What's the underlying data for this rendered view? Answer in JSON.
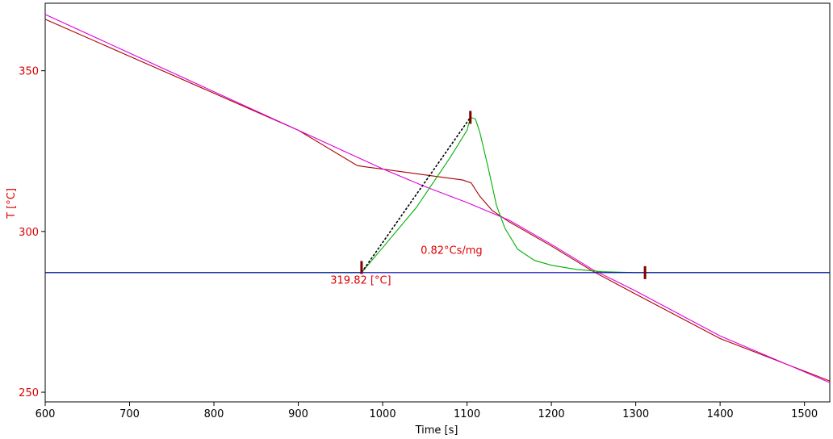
{
  "colors": {
    "axis_text": "#000000",
    "y_axis_text": "#d80000",
    "annotation": "#e00000",
    "marker": "#800000"
  },
  "chart_data": {
    "type": "line",
    "xlabel": "Time [s]",
    "ylabel": "T  [°C]",
    "xlim": [
      600,
      1530
    ],
    "ylim": [
      247,
      371
    ],
    "x_ticks": [
      600,
      700,
      800,
      900,
      1000,
      1100,
      1200,
      1300,
      1400,
      1500
    ],
    "y_ticks": [
      250,
      300,
      350
    ],
    "grid": false,
    "series": [
      {
        "color": "#aa0000",
        "points": [
          [
            600,
            366
          ],
          [
            700,
            354.5
          ],
          [
            800,
            343
          ],
          [
            900,
            331.5
          ],
          [
            970,
            320.5
          ],
          [
            980,
            320.1
          ],
          [
            1000,
            319.4
          ],
          [
            1050,
            317.6
          ],
          [
            1095,
            316
          ],
          [
            1105,
            315.1
          ],
          [
            1115,
            311
          ],
          [
            1130,
            306.5
          ],
          [
            1150,
            303
          ],
          [
            1200,
            295.5
          ],
          [
            1250,
            287.5
          ],
          [
            1300,
            280.5
          ],
          [
            1400,
            266.7
          ],
          [
            1530,
            253.5
          ]
        ]
      },
      {
        "color": "#dd00dd",
        "points": [
          [
            600,
            367.5
          ],
          [
            700,
            355.5
          ],
          [
            800,
            343.5
          ],
          [
            900,
            331.5
          ],
          [
            1000,
            319.5
          ],
          [
            1050,
            314
          ],
          [
            1100,
            309
          ],
          [
            1150,
            303.5
          ],
          [
            1200,
            296
          ],
          [
            1250,
            288
          ],
          [
            1300,
            281.5
          ],
          [
            1400,
            267.5
          ],
          [
            1530,
            253
          ]
        ]
      },
      {
        "color": "#00b000",
        "points": [
          [
            600,
            287.2
          ],
          [
            930,
            287.2
          ],
          [
            975,
            287.2
          ],
          [
            1000,
            295
          ],
          [
            1040,
            307.5
          ],
          [
            1080,
            323
          ],
          [
            1100,
            331.5
          ],
          [
            1104,
            335.5
          ],
          [
            1110,
            335
          ],
          [
            1115,
            331
          ],
          [
            1125,
            320
          ],
          [
            1135,
            308
          ],
          [
            1145,
            301
          ],
          [
            1160,
            294.5
          ],
          [
            1180,
            291
          ],
          [
            1200,
            289.5
          ],
          [
            1230,
            288.2
          ],
          [
            1260,
            287.5
          ],
          [
            1300,
            287.2
          ],
          [
            1530,
            287.2
          ]
        ]
      },
      {
        "color": "#0000aa",
        "points": [
          [
            600,
            287.2
          ],
          [
            1530,
            287.2
          ]
        ]
      },
      {
        "color": "#000000",
        "dashed": true,
        "points": [
          [
            975,
            287.2
          ],
          [
            1104,
            335.5
          ]
        ]
      }
    ],
    "markers": [
      {
        "x": 975,
        "y": 288.8
      },
      {
        "x": 1104,
        "y": 335.5
      },
      {
        "x": 1311,
        "y": 287.2
      }
    ],
    "annotations": [
      {
        "text": "0.82°Cs/mg",
        "x": 1045,
        "y": 293
      },
      {
        "text": "319.82 [°C]",
        "x": 938,
        "y": 283.8
      }
    ]
  }
}
